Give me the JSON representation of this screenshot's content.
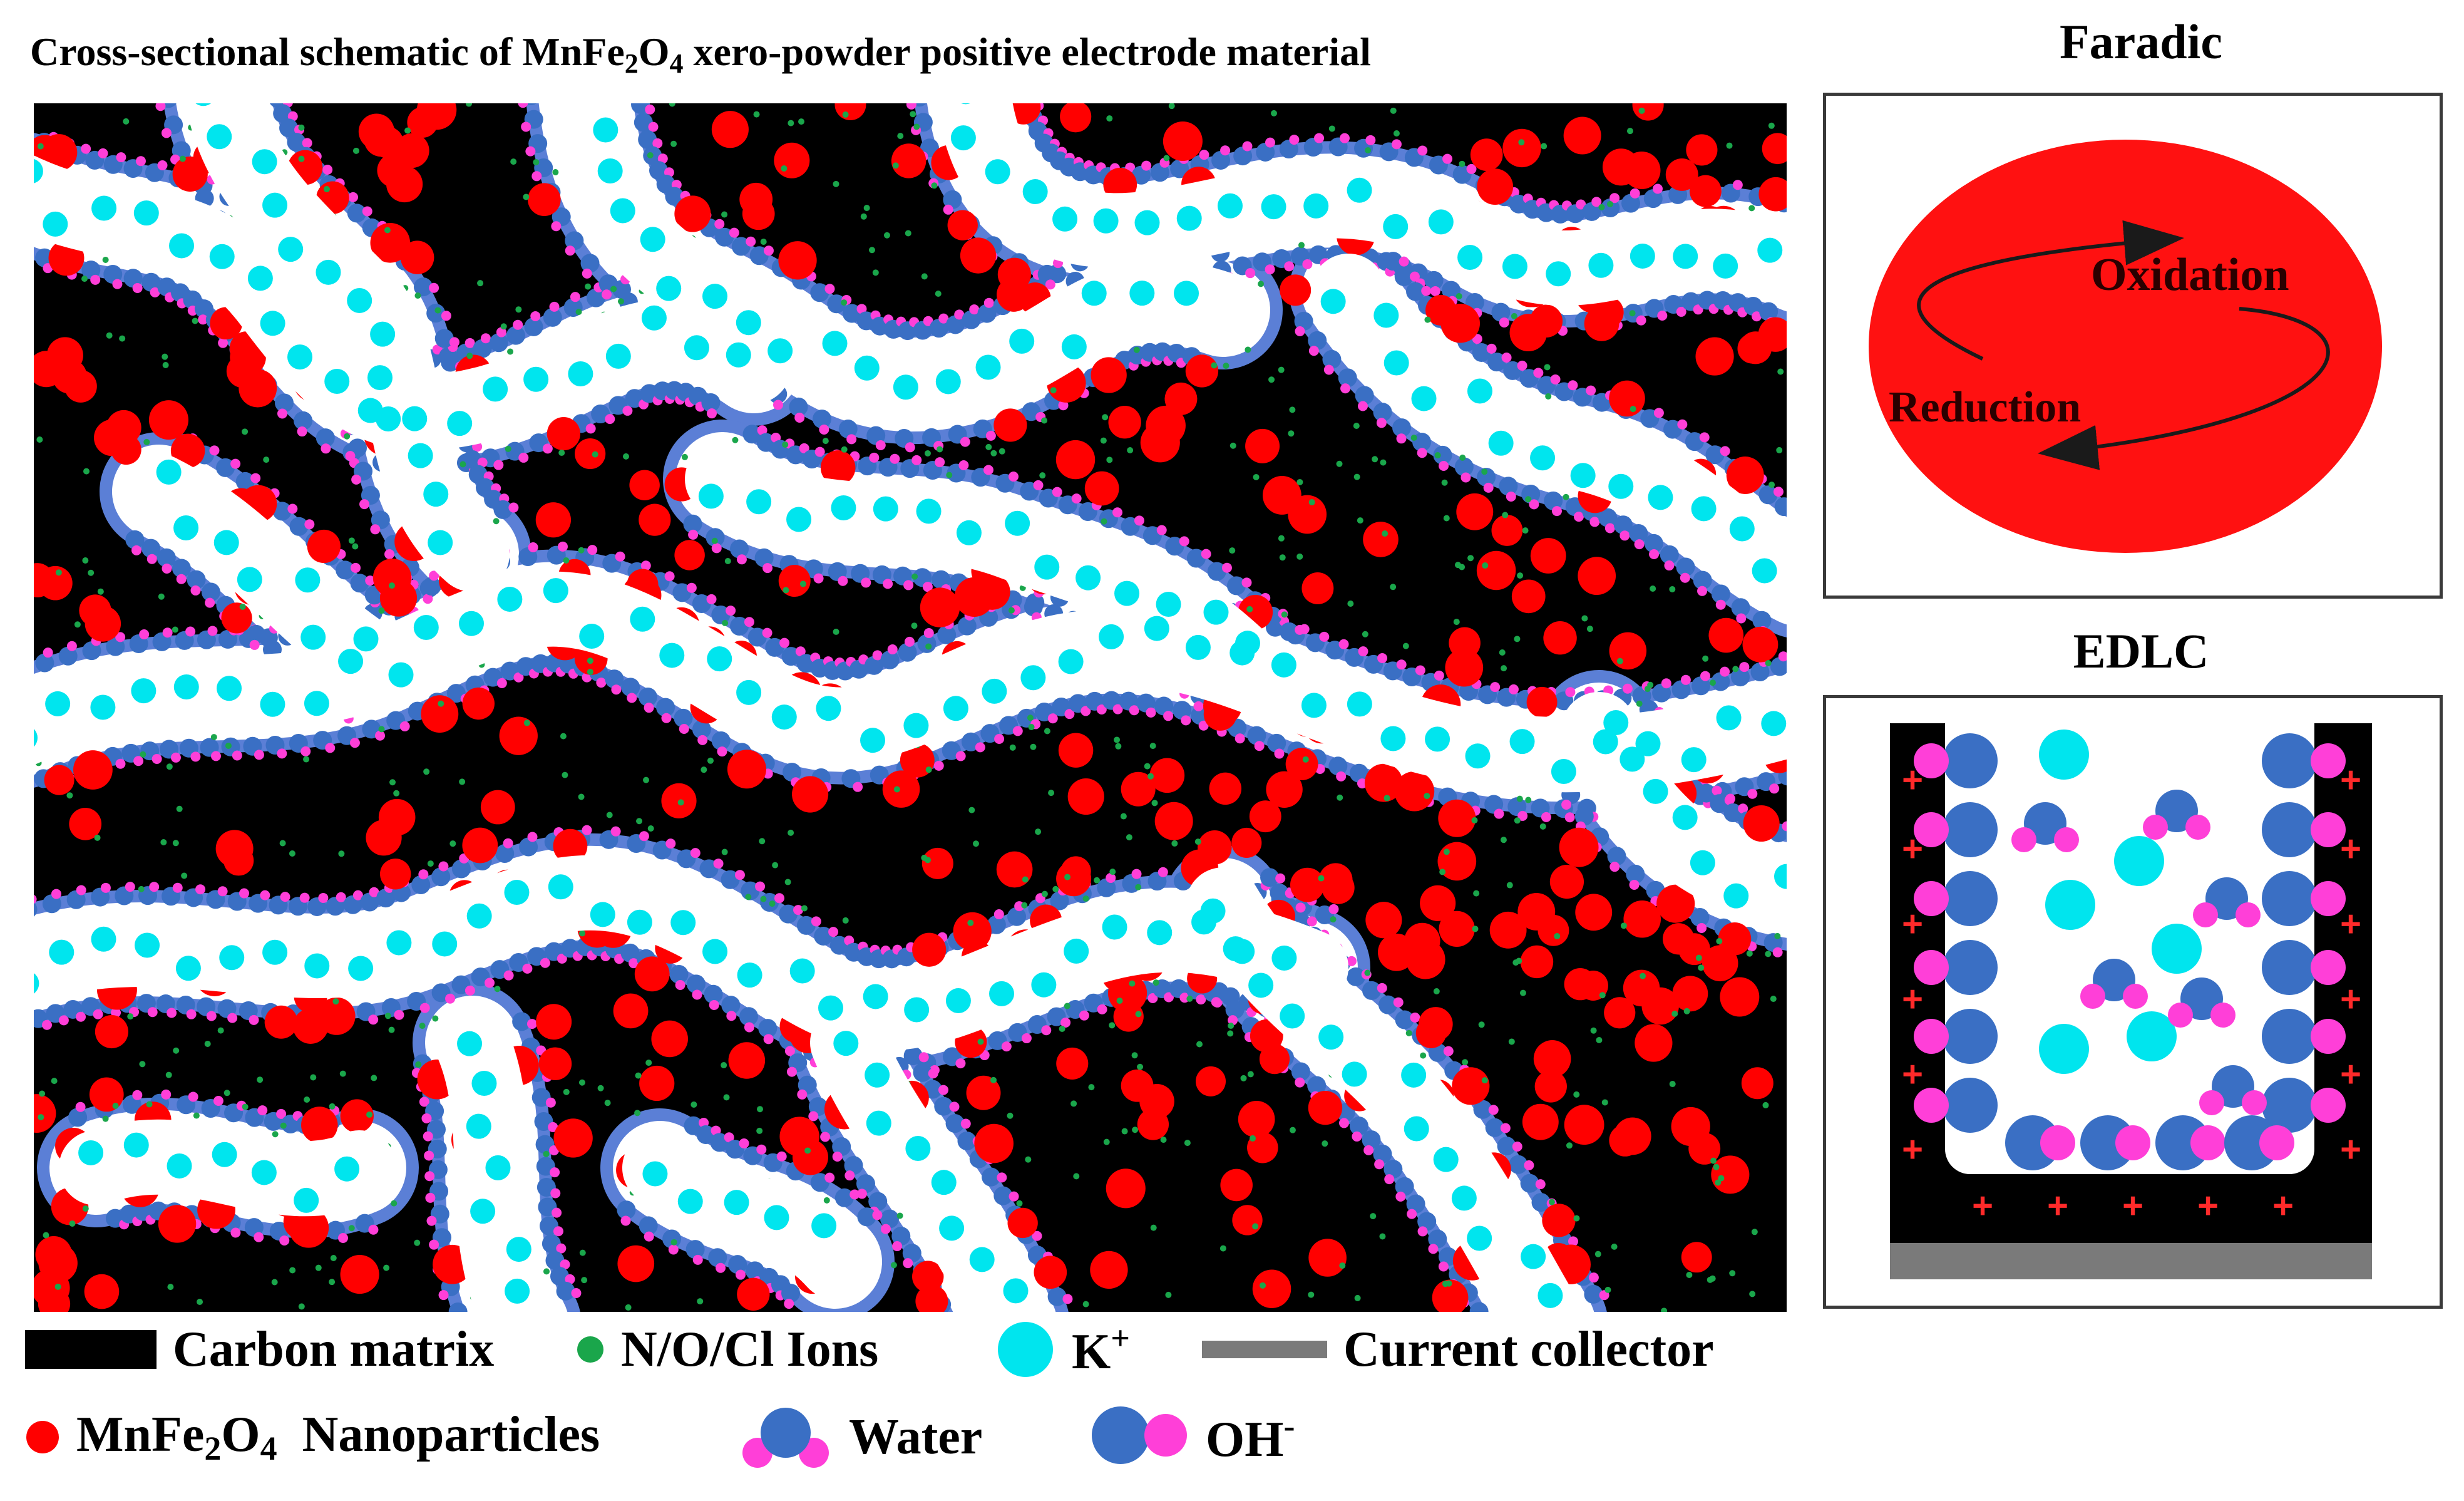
{
  "title": {
    "part1": "Cross-sectional schematic of MnFe",
    "sub1": "2",
    "part2": "O",
    "sub2": "4",
    "part3": " xero-powder positive electrode material"
  },
  "faradic": {
    "title": "Faradic",
    "oxidation_label": "Oxidation",
    "reduction_label": "Reduction"
  },
  "edlc": {
    "title": "EDLC",
    "plus_sign": "+"
  },
  "legend": {
    "carbon_matrix": "Carbon matrix",
    "ions": "N/O/Cl Ions",
    "k_base": "K",
    "k_sup": "+",
    "current_collector": "Current collector",
    "np_part1": "MnFe",
    "np_sub1": "2",
    "np_part2": "O",
    "np_sub2": "4",
    "np_part3": "  Nanoparticles",
    "water": "Water",
    "oh_base": "OH",
    "oh_sup": "-"
  },
  "colors": {
    "carbon": "#000000",
    "nanoparticle": "#ff0000",
    "ion": "#1aa64b",
    "potassium": "#00e5ee",
    "oxygen_blue": "#3a6fc4",
    "hydrogen_magenta": "#ff3fd8",
    "collector": "#7a7a7a",
    "faradic_fill": "#ff1111",
    "plus_red": "#ff2a2a"
  },
  "icons": [
    "carbon-matrix-swatch",
    "ion-dot-icon",
    "potassium-ion-icon",
    "current-collector-swatch",
    "nanoparticle-icon",
    "water-molecule-icon",
    "hydroxide-icon"
  ]
}
